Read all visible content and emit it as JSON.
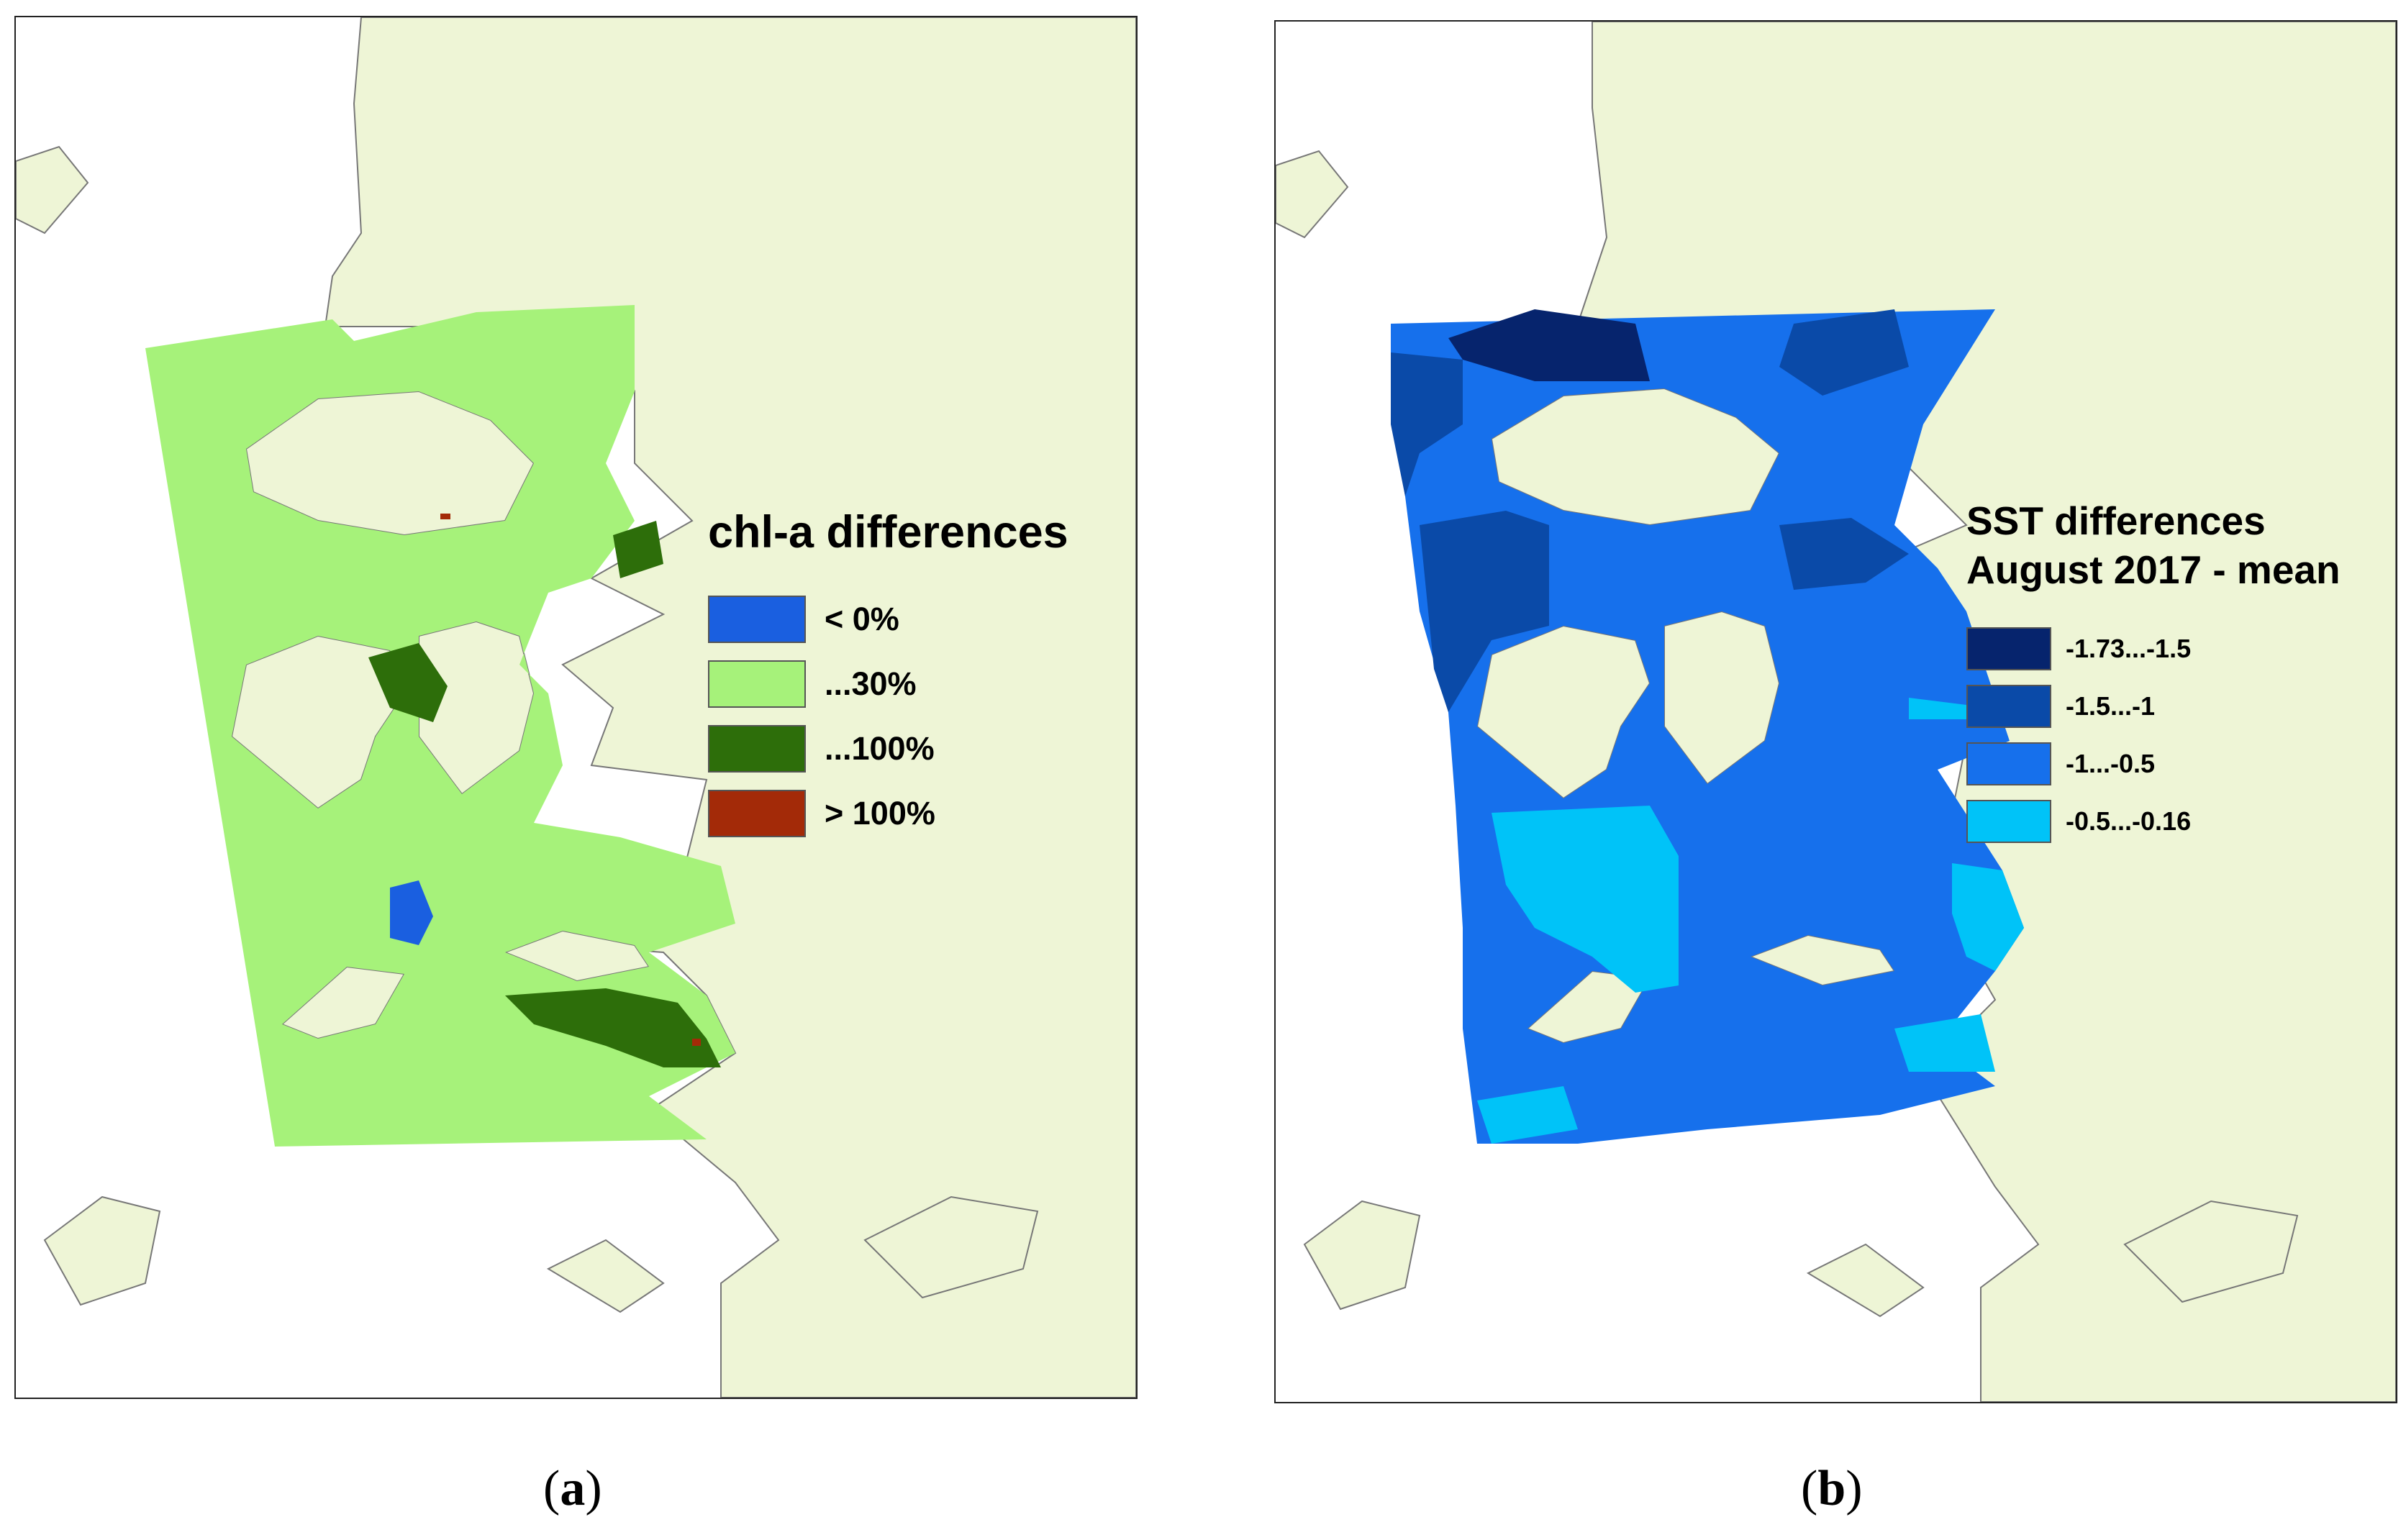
{
  "colors": {
    "land": "#eef5d6",
    "coast": "#777777",
    "sea": "#ffffff"
  },
  "panel_a": {
    "legend": {
      "title": "chl-a differences",
      "items": [
        {
          "label": "< 0%",
          "color": "#1a5fe0"
        },
        {
          "label": "...30%",
          "color": "#a6f27a"
        },
        {
          "label": "...100%",
          "color": "#2d6e0a"
        },
        {
          "label": "> 100%",
          "color": "#a32a08"
        }
      ]
    },
    "caption": {
      "open": "(",
      "letter": "a",
      "close": ")"
    }
  },
  "panel_b": {
    "legend": {
      "title": "SST differences\nAugust 2017 - mean",
      "items": [
        {
          "label": "-1.73...-1.5",
          "color": "#06246d"
        },
        {
          "label": "-1.5...-1",
          "color": "#0a4aa8"
        },
        {
          "label": "-1...-0.5",
          "color": "#1670ec"
        },
        {
          "label": "-0.5...-0.16",
          "color": "#00c3f8"
        }
      ]
    },
    "caption": {
      "open": "(",
      "letter": "b",
      "close": ")"
    }
  }
}
